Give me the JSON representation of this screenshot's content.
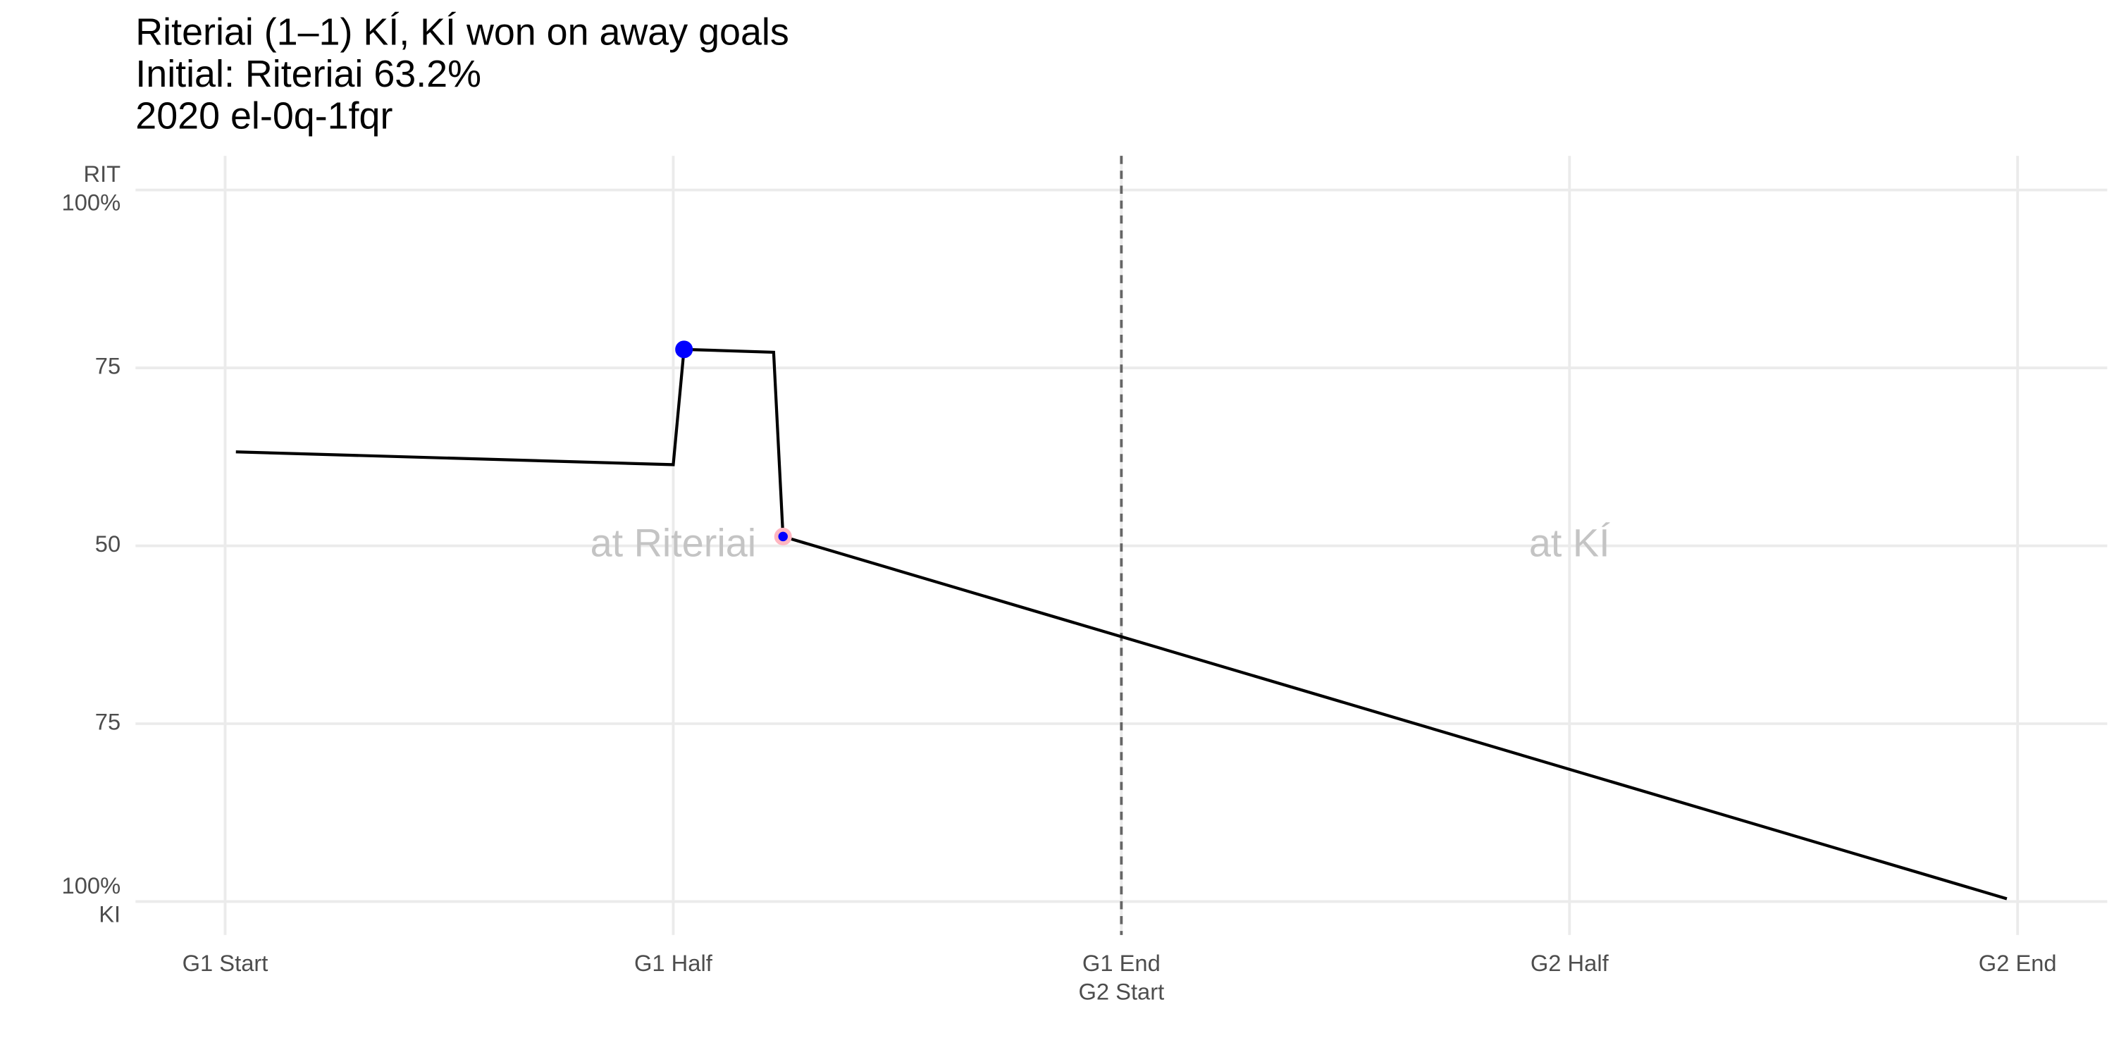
{
  "chart_data": {
    "type": "line",
    "title": [
      "Riteriai (1–1) KÍ, KÍ won on away goals",
      "Initial: Riteriai 63.2%",
      "2020 el-0q-1fqr"
    ],
    "xlim": [
      -0.2,
      4.2
    ],
    "ylim": [
      -4.7,
      104.8
    ],
    "xticks": [
      {
        "value": 0,
        "label": [
          "G1 Start"
        ]
      },
      {
        "value": 1,
        "label": [
          "G1 Half"
        ]
      },
      {
        "value": 2,
        "label": [
          "G1 End",
          "G2 Start"
        ]
      },
      {
        "value": 3,
        "label": [
          "G2 Half"
        ]
      },
      {
        "value": 4,
        "label": [
          "G2 End"
        ]
      }
    ],
    "yticks": [
      {
        "value": 0,
        "label": [
          "100%",
          "KI"
        ]
      },
      {
        "value": 25,
        "label": [
          "75"
        ]
      },
      50,
      {
        "value": 75,
        "label": [
          "75"
        ]
      },
      {
        "value": 100,
        "label": [
          "RIT",
          "100%"
        ]
      }
    ],
    "grid": true,
    "vline": 2,
    "series": [
      {
        "color": "#000000",
        "x": [
          0.024,
          1.0,
          1.024,
          1.224,
          1.245,
          3.976
        ],
        "values": [
          63.2,
          61.4,
          77.6,
          77.2,
          51.3,
          0.4
        ]
      }
    ],
    "goals": {
      "x": [
        1.024,
        1.245
      ],
      "values": [
        77.6,
        51.3
      ],
      "color": "#0000ff",
      "outline": [
        "#0000ff",
        "#ffb6c1"
      ]
    },
    "annotations": [
      {
        "text": "at Riteriai",
        "x": 1,
        "y": 50
      },
      {
        "text": "at KÍ",
        "x": 3,
        "y": 50
      }
    ]
  }
}
